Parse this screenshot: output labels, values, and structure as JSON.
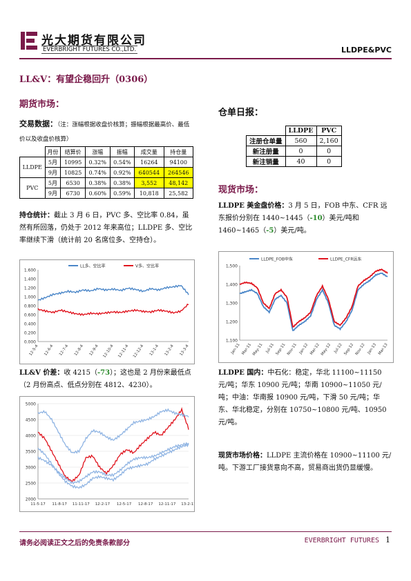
{
  "header": {
    "company_cn": "光大期货有限公司",
    "company_en": "EVERBRIGHT FUTURES CO.,LTD.",
    "product": "LLDPE&PVC"
  },
  "title": "LL&V：有望企稳回升（0306）",
  "futures": {
    "heading": "期货市场：",
    "trade_label": "交易数据：",
    "trade_note": "（注：涨幅根据收盘价核算；振幅根据最高价、最低价以及收盘价核算）",
    "table": {
      "headers": [
        "月份",
        "结算价",
        "涨幅",
        "振幅",
        "成交量",
        "持仓量"
      ],
      "rows": [
        {
          "product": "LLDPE",
          "month": "5月",
          "settle": "10995",
          "chg": "0.32%",
          "amp": "0.54%",
          "vol": "16264",
          "oi": "94100"
        },
        {
          "product": "",
          "month": "9月",
          "settle": "10825",
          "chg": "0.74%",
          "amp": "0.92%",
          "vol": "640544",
          "oi": "264546"
        },
        {
          "product": "PVC",
          "month": "5月",
          "settle": "6530",
          "chg": "0.38%",
          "amp": "0.38%",
          "vol": "3,552",
          "oi": "48,142"
        },
        {
          "product": "",
          "month": "9月",
          "settle": "6730",
          "chg": "0.60%",
          "amp": "0.59%",
          "vol": "10,818",
          "oi": "25,582"
        }
      ]
    },
    "position_label": "持仓统计：",
    "position_text": "截止 3 月 6 日，PVC 多、空比率 0.84，虽然有所回落，仍处于 2012 年来高位；LLDPE 多、空比率继续下滑（统计前 20 名席位多、空持仓）。",
    "price_label": "LL&V 价差：",
    "price_text_1": "收 4215（",
    "price_change": "-73",
    "price_text_2": "）；这也是 2 月份来最低点（2 月份高点、低点分别在 4812、4230）。"
  },
  "chart_ratio": {
    "type": "line",
    "legend": [
      "LL多、空比率",
      "V多、空比率"
    ],
    "colors": [
      "#4a86c8",
      "#e0141e"
    ],
    "yticks": [
      "1.600",
      "1.400",
      "1.200",
      "1.000",
      "0.800",
      "0.600",
      "0.400",
      "0.200",
      "0.000"
    ],
    "xticks": [
      "12-5-4",
      "12-6-4",
      "12-7-4",
      "12-8-4",
      "12-9-4",
      "12-10-4",
      "12-11-4",
      "12-12-4",
      "13-1-4",
      "13-2-4",
      "13-3-4"
    ],
    "ylim": [
      0,
      1.6
    ],
    "series": [
      {
        "name": "LL多、空比率",
        "values": [
          0.92,
          0.98,
          1.05,
          1.08,
          1.12,
          1.1,
          1.15,
          1.13,
          1.18,
          1.15,
          1.17,
          1.14,
          1.19,
          1.16,
          1.12,
          1.18,
          1.15,
          1.2,
          1.22,
          1.25,
          1.05
        ]
      },
      {
        "name": "V多、空比率",
        "values": [
          0.72,
          0.68,
          0.65,
          0.7,
          0.66,
          0.62,
          0.6,
          0.63,
          0.62,
          0.64,
          0.66,
          0.65,
          0.68,
          0.7,
          0.67,
          0.66,
          0.7,
          0.68,
          0.64,
          0.68,
          0.84
        ]
      }
    ]
  },
  "chart_spread": {
    "type": "line",
    "yticks": [
      "5000",
      "4500",
      "4000",
      "3500",
      "3000",
      "2500",
      "2000"
    ],
    "xticks": [
      "11-5-17",
      "11-8-17",
      "11-11-17",
      "12-2-17",
      "12-5-17",
      "12-8-17",
      "12-11-17",
      "13-2-17"
    ],
    "ylim": [
      2000,
      5000
    ],
    "colors": [
      "#e0141e",
      "#8fb4e3",
      "#8fb4e3",
      "#8fb4e3"
    ],
    "series": [
      {
        "values": [
          4100,
          3900,
          3500,
          3100,
          2700,
          2550,
          2750,
          3300,
          3350,
          3000,
          2800,
          3050,
          3400,
          3550,
          3450,
          3700,
          3900,
          4100,
          4000,
          4250,
          4500,
          4812,
          4215
        ]
      },
      {
        "values": [
          4700,
          4750,
          4500,
          4100,
          3700,
          3450,
          3500,
          3900,
          4150,
          4100,
          3950,
          3850,
          4000,
          4200,
          4400,
          4450,
          4500,
          4600,
          4750,
          4800,
          4700,
          4650,
          4600
        ]
      },
      {
        "values": [
          3300,
          3200,
          3050,
          2850,
          2650,
          2500,
          2550,
          2700,
          2850,
          2850,
          2750,
          2750,
          2900,
          3100,
          3250,
          3300,
          3300,
          3350,
          3450,
          3550,
          3650,
          3700,
          3750
        ]
      },
      {
        "values": [
          3600,
          3400,
          3100,
          2800,
          2550,
          2400,
          2350,
          2450,
          2650,
          2700,
          2650,
          2600,
          2750,
          2950,
          3000,
          3050,
          3100,
          3250,
          3350,
          3450,
          3550,
          3650,
          3700
        ]
      }
    ]
  },
  "warehouse": {
    "heading": "仓单日报：",
    "headers": [
      "",
      "LLDPE",
      "PVC"
    ],
    "rows": [
      {
        "label": "注册仓单量",
        "lldpe": "560",
        "pvc": "2,160"
      },
      {
        "label": "新注册量",
        "lldpe": "0",
        "pvc": "0"
      },
      {
        "label": "新注销量",
        "lldpe": "40",
        "pvc": "0"
      }
    ]
  },
  "spot": {
    "heading": "现货市场：",
    "usd_label": "LLDPE 美金盘价格：",
    "usd_text_1": "3 月 5 日，FOB 中东、CFR 远东报价分别在 1440~1445（",
    "usd_chg_1": "-10",
    "usd_text_2": "）美元/吨和 1460~1465（",
    "usd_chg_2": "-5",
    "usd_text_3": "）美元/吨。",
    "domestic_label": "LLDPE 国内：",
    "domestic_text": "中石化：稳定，华北 11100~11150 元/吨；华东 10900 元/吨；华南 10900~11050 元/吨；中油：华南报 10900 元/吨，下滑 50 元/吨；华东、华北稳定，分别在 10750~10800 元/吨、10950 元/吨。",
    "market_label": "现货市场价格：",
    "market_text": "LLDPE 主流价格在 10900~11100 元/吨。下游工厂接货意向不高，贸易商出货仍显缓慢。"
  },
  "chart_fob": {
    "type": "line",
    "legend": [
      "LLDPE_FOB中东",
      "LLDPE_CFR远东"
    ],
    "colors": [
      "#4a86c8",
      "#e0141e"
    ],
    "yticks": [
      "1,500",
      "1,400",
      "1,300",
      "1,200",
      "1,100"
    ],
    "xticks": [
      "Jan-11",
      "Mar-11",
      "May-11",
      "Jul-11",
      "Sep-11",
      "Nov-11",
      "Jan-12",
      "Mar-12",
      "May-12",
      "Jul-12",
      "Sep-12",
      "Nov-12",
      "Jan-13",
      "Mar-13"
    ],
    "ylim": [
      1100,
      1500
    ],
    "series": [
      {
        "name": "LLDPE_FOB中东",
        "values": [
          1350,
          1360,
          1370,
          1350,
          1280,
          1250,
          1320,
          1340,
          1300,
          1150,
          1180,
          1200,
          1230,
          1320,
          1370,
          1300,
          1180,
          1160,
          1200,
          1260,
          1370,
          1400,
          1420,
          1450,
          1460,
          1440
        ]
      },
      {
        "name": "LLDPE_CFR远东",
        "values": [
          1400,
          1410,
          1405,
          1380,
          1300,
          1270,
          1350,
          1370,
          1330,
          1170,
          1200,
          1220,
          1250,
          1340,
          1390,
          1320,
          1200,
          1180,
          1220,
          1280,
          1390,
          1420,
          1440,
          1470,
          1480,
          1460
        ]
      }
    ]
  },
  "footer": {
    "disclaimer": "请务必阅读正文之后的免责条款部分",
    "brand": "EVERBRIGHT FUTURES",
    "page": "1"
  }
}
